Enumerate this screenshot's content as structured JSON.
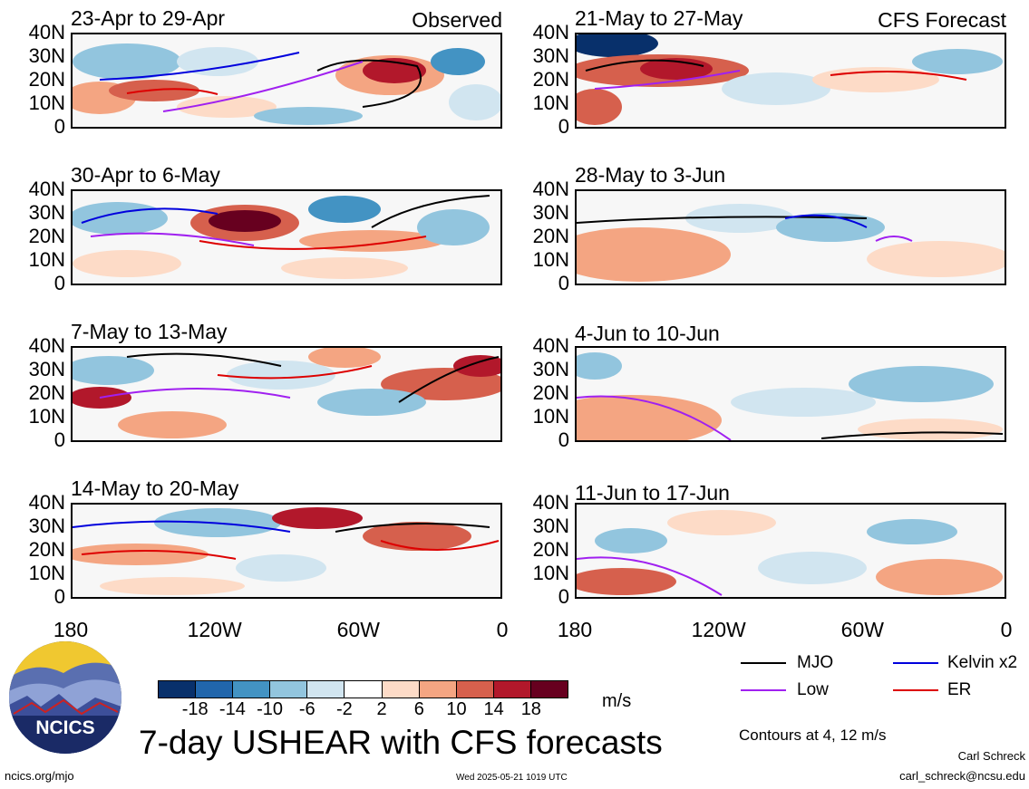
{
  "left_column_tag": "Observed",
  "right_column_tag": "CFS Forecast",
  "panels_left": [
    {
      "title": "23-Apr to 29-Apr"
    },
    {
      "title": "30-Apr to 6-May"
    },
    {
      "title": "7-May to 13-May"
    },
    {
      "title": "14-May to 20-May"
    }
  ],
  "panels_right": [
    {
      "title": "21-May to 27-May"
    },
    {
      "title": "28-May to 3-Jun"
    },
    {
      "title": "4-Jun to 10-Jun"
    },
    {
      "title": "11-Jun to 17-Jun"
    }
  ],
  "lat_labels": [
    "40N",
    "30N",
    "20N",
    "10N",
    "0"
  ],
  "lon_labels": [
    "180",
    "120W",
    "60W",
    "0"
  ],
  "colorbar": {
    "unit": "m/s",
    "tick_labels": [
      "-18",
      "-14",
      "-10",
      "-6",
      "-2",
      "2",
      "6",
      "10",
      "14",
      "18"
    ],
    "colors": [
      "#08306b",
      "#2166ac",
      "#4393c3",
      "#92c5de",
      "#d1e5f0",
      "#ffffff",
      "#fddbc7",
      "#f4a582",
      "#d6604d",
      "#b2182b",
      "#67001f"
    ]
  },
  "legend": {
    "items": [
      {
        "label": "MJO",
        "color": "#000000"
      },
      {
        "label": "Kelvin x2",
        "color": "#0000dd"
      },
      {
        "label": "Low",
        "color": "#a020f0"
      },
      {
        "label": "ER",
        "color": "#dd0000"
      }
    ],
    "contours_note": "Contours at 4, 12 m/s"
  },
  "main_title": "7-day USHEAR with CFS forecasts",
  "logo_text": "NCICS",
  "footer": {
    "url": "ncics.org/mjo",
    "timestamp": "Wed 2025-05-21 1019 UTC",
    "author": "Carl Schreck",
    "email": "carl_schreck@ncsu.edu"
  }
}
